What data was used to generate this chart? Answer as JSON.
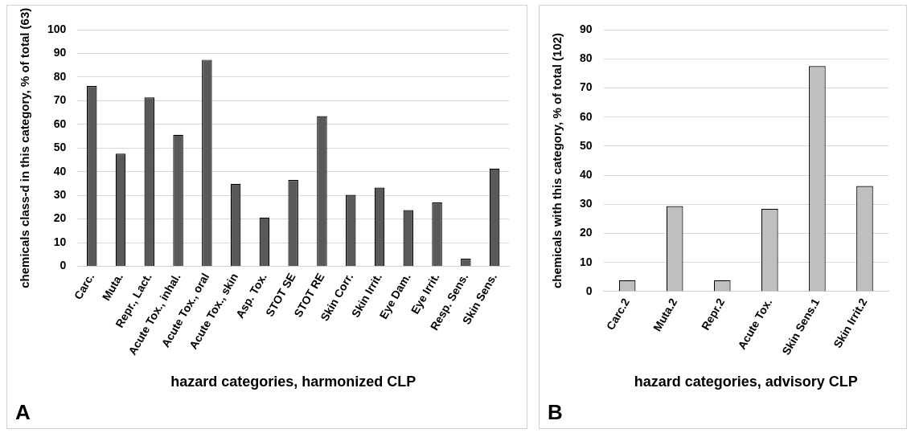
{
  "chart_data": [
    {
      "type": "bar",
      "xlabel": "hazard categories, harmonized CLP",
      "ylabel": "chemicals class-d in this category, % of total (63)",
      "categories": [
        "Carc.",
        "Muta.",
        "Repr., Lact.",
        "Acute Tox., inhal.",
        "Acute Tox., oral",
        "Acute Tox., skin",
        "Asp. Tox.",
        "STOT SE",
        "STOT RE",
        "Skin Corr.",
        "Skin Irrit.",
        "Eye Dam.",
        "Eye Irrit.",
        "Resp. Sens.",
        "Skin Sens."
      ],
      "values": [
        76.2,
        47.6,
        71.4,
        55.6,
        87.3,
        34.9,
        20.6,
        36.5,
        63.5,
        30.2,
        33.3,
        23.8,
        27.0,
        3.2,
        41.3
      ],
      "color": "#595959",
      "ylim": [
        0,
        100
      ],
      "yticks": [
        0,
        10,
        20,
        30,
        40,
        50,
        60,
        70,
        80,
        90,
        100
      ],
      "grid": "y",
      "legend": false,
      "annotations": [
        "A"
      ]
    },
    {
      "type": "bar",
      "xlabel": "hazard categories, advisory CLP",
      "ylabel": "chemicals with this category, % of total (102)",
      "categories": [
        "Carc.2",
        "Muta.2",
        "Repr.2",
        "Acute Tox.",
        "Skin Sens.1",
        "Skin Irrit.2"
      ],
      "values": [
        3.9,
        29.4,
        3.9,
        28.4,
        77.5,
        36.3
      ],
      "color": "#bfbfbf",
      "ylim": [
        0,
        90
      ],
      "yticks": [
        0,
        10,
        20,
        30,
        40,
        50,
        60,
        70,
        80,
        90
      ],
      "grid": "y",
      "legend": false,
      "annotations": [
        "B"
      ]
    }
  ]
}
